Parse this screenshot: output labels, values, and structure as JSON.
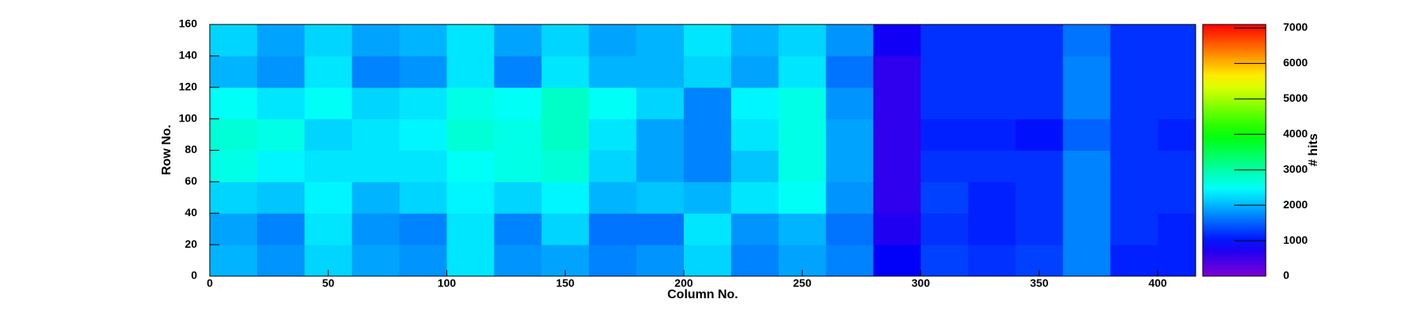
{
  "chart_data": {
    "type": "heatmap",
    "x_label": "Column No.",
    "y_label": "Row No.",
    "colorbar_label": "# hits",
    "x_edges": [
      0,
      20,
      40,
      60,
      80,
      100,
      120,
      140,
      160,
      180,
      200,
      220,
      240,
      260,
      280,
      300,
      320,
      340,
      360,
      380,
      400,
      416
    ],
    "y_edges": [
      0,
      20,
      40,
      60,
      80,
      100,
      120,
      140,
      160
    ],
    "values": [
      [
        2000,
        1800,
        2200,
        1900,
        1800,
        2300,
        1800,
        1900,
        1700,
        1800,
        2200,
        1700,
        1900,
        1700,
        900,
        1300,
        1200,
        1300,
        1700,
        1100,
        1100
      ],
      [
        1900,
        1700,
        2300,
        1800,
        1700,
        2300,
        1700,
        2200,
        1600,
        1600,
        2300,
        1800,
        2000,
        1600,
        700,
        1200,
        1100,
        1200,
        1700,
        1200,
        1100
      ],
      [
        2200,
        2100,
        2400,
        2000,
        2200,
        2400,
        2200,
        2400,
        2000,
        2100,
        2000,
        2300,
        2500,
        1800,
        600,
        1300,
        1100,
        1200,
        1700,
        1200,
        1200
      ],
      [
        2600,
        2400,
        2300,
        2300,
        2300,
        2500,
        2600,
        2700,
        2200,
        1900,
        1700,
        2100,
        2600,
        1900,
        600,
        1200,
        1200,
        1200,
        1700,
        1200,
        1200
      ],
      [
        2700,
        2600,
        2200,
        2300,
        2400,
        2700,
        2600,
        2800,
        2300,
        1900,
        1700,
        2300,
        2600,
        1900,
        600,
        1100,
        1100,
        1000,
        1500,
        1200,
        1100
      ],
      [
        2500,
        2300,
        2500,
        2200,
        2300,
        2600,
        2500,
        2800,
        2500,
        2200,
        1700,
        2400,
        2600,
        1800,
        600,
        1200,
        1200,
        1200,
        1700,
        1200,
        1200
      ],
      [
        2000,
        1800,
        2300,
        1700,
        1800,
        2300,
        1700,
        2300,
        2000,
        2000,
        2200,
        1900,
        2300,
        1600,
        600,
        1200,
        1200,
        1200,
        1700,
        1200,
        1200
      ],
      [
        2200,
        1900,
        2200,
        1900,
        2000,
        2300,
        1900,
        2200,
        1900,
        2000,
        2300,
        2000,
        2200,
        1800,
        800,
        1200,
        1200,
        1200,
        1600,
        1200,
        1200
      ]
    ],
    "xlim": [
      0,
      416
    ],
    "ylim": [
      0,
      160
    ],
    "zlim": [
      0,
      7100
    ],
    "xticks": [
      0,
      50,
      100,
      150,
      200,
      250,
      300,
      350,
      400
    ],
    "yticks": [
      0,
      20,
      40,
      60,
      80,
      100,
      120,
      140,
      160
    ],
    "zticks": [
      0,
      1000,
      2000,
      3000,
      4000,
      5000,
      6000,
      7000
    ]
  }
}
